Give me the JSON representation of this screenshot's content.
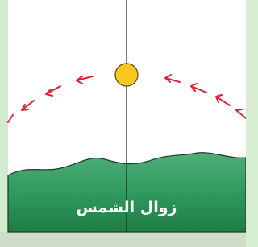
{
  "caption": "زوال الشمس"
}
